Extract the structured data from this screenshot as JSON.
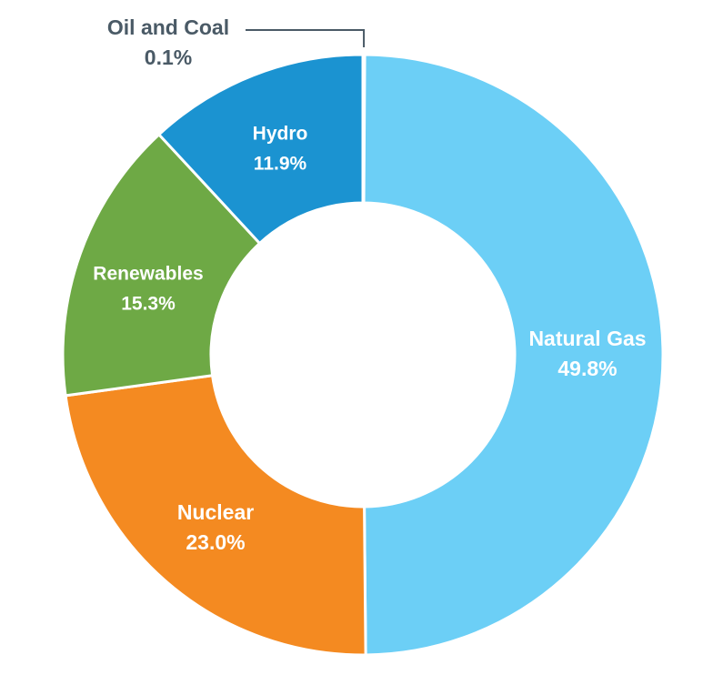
{
  "chart_data": {
    "type": "pie",
    "donut": true,
    "title": "",
    "slices": [
      {
        "label": "Oil and Coal",
        "value": 0.1,
        "value_label": "0.1%",
        "color": "#4a5a66"
      },
      {
        "label": "Natural Gas",
        "value": 49.8,
        "value_label": "49.8%",
        "color": "#6ccff6"
      },
      {
        "label": "Nuclear",
        "value": 23.0,
        "value_label": "23.0%",
        "color": "#f48a21"
      },
      {
        "label": "Renewables",
        "value": 15.3,
        "value_label": "15.3%",
        "color": "#6ea945"
      },
      {
        "label": "Hydro",
        "value": 11.9,
        "value_label": "11.9%",
        "color": "#1b93d1"
      }
    ],
    "callout_slice": "Oil and Coal",
    "legend": "none",
    "separator_color": "#ffffff",
    "callout_line_color": "#4a5a66"
  }
}
